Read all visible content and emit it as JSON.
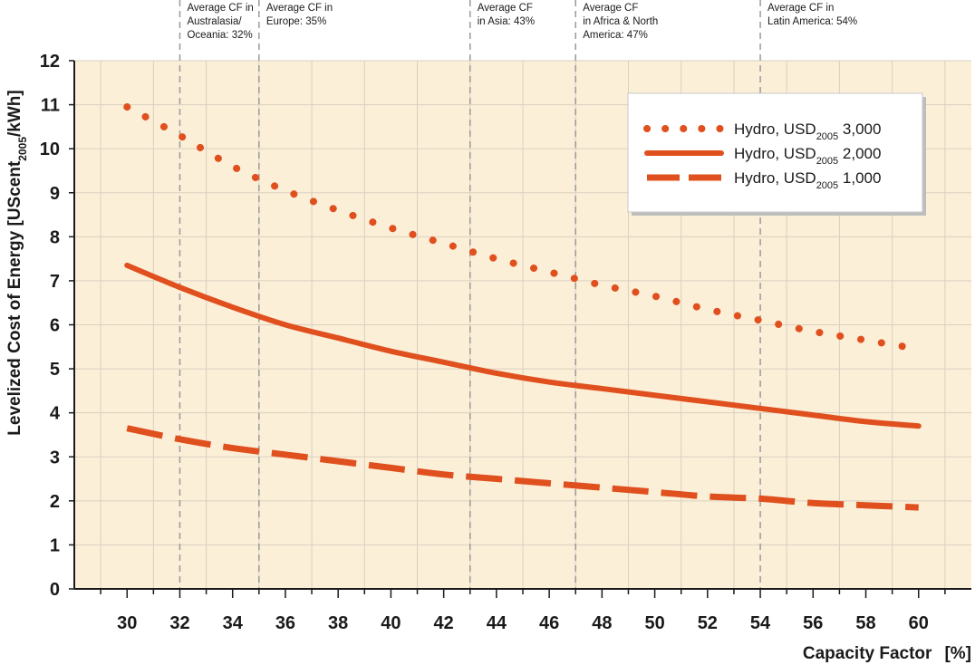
{
  "chart_data": {
    "type": "line",
    "xlabel": "Capacity Factor",
    "xunit": "[%]",
    "ylabel": "Levelized Cost of Energy [UScent",
    "ylabel_sub": "2005",
    "ylabel_end": "/kWh]",
    "xlim": [
      28,
      62
    ],
    "ylim": [
      0,
      12
    ],
    "x_ticks": [
      30,
      32,
      34,
      36,
      38,
      40,
      42,
      44,
      46,
      48,
      50,
      52,
      54,
      56,
      58,
      60
    ],
    "y_ticks": [
      0,
      1,
      2,
      3,
      4,
      5,
      6,
      7,
      8,
      9,
      10,
      11,
      12
    ],
    "grid": true,
    "legend_position": "top-right",
    "colors": {
      "series": "#e0501e",
      "plot_bg": "#fcefd8",
      "grid": "#d9d0c0",
      "annotation_line": "#9a9a9a"
    },
    "x": [
      30,
      32,
      34,
      36,
      38,
      40,
      42,
      44,
      46,
      48,
      50,
      52,
      54,
      56,
      58,
      60
    ],
    "series": [
      {
        "name_prefix": "Hydro,  USD",
        "name_sub": "2005",
        "name_suffix": " 3,000",
        "style": "dotted",
        "values": [
          10.95,
          10.3,
          9.6,
          9.05,
          8.6,
          8.2,
          7.85,
          7.5,
          7.2,
          6.9,
          6.65,
          6.35,
          6.1,
          5.85,
          5.65,
          5.45
        ]
      },
      {
        "name_prefix": "Hydro,  USD",
        "name_sub": "2005",
        "name_suffix": " 2,000",
        "style": "solid",
        "values": [
          7.35,
          6.85,
          6.4,
          6.0,
          5.7,
          5.4,
          5.15,
          4.9,
          4.7,
          4.55,
          4.4,
          4.25,
          4.1,
          3.95,
          3.8,
          3.7
        ]
      },
      {
        "name_prefix": "Hydro,  USD",
        "name_sub": "2005",
        "name_suffix": " 1,000",
        "style": "dashed",
        "values": [
          3.65,
          3.4,
          3.2,
          3.05,
          2.9,
          2.75,
          2.6,
          2.5,
          2.4,
          2.3,
          2.2,
          2.1,
          2.05,
          1.95,
          1.9,
          1.85
        ]
      }
    ],
    "annotations": [
      {
        "x": 32,
        "lines": [
          "Average CF in",
          "Australasia/",
          "Oceania: 32%"
        ]
      },
      {
        "x": 35,
        "lines": [
          "Average CF in",
          "Europe: 35%"
        ]
      },
      {
        "x": 43,
        "lines": [
          "Average CF",
          "in Asia: 43%"
        ]
      },
      {
        "x": 47,
        "lines": [
          "Average CF",
          "in Africa & North",
          "America: 47%"
        ]
      },
      {
        "x": 54,
        "lines": [
          "Average CF in",
          "Latin America: 54%"
        ]
      }
    ]
  }
}
